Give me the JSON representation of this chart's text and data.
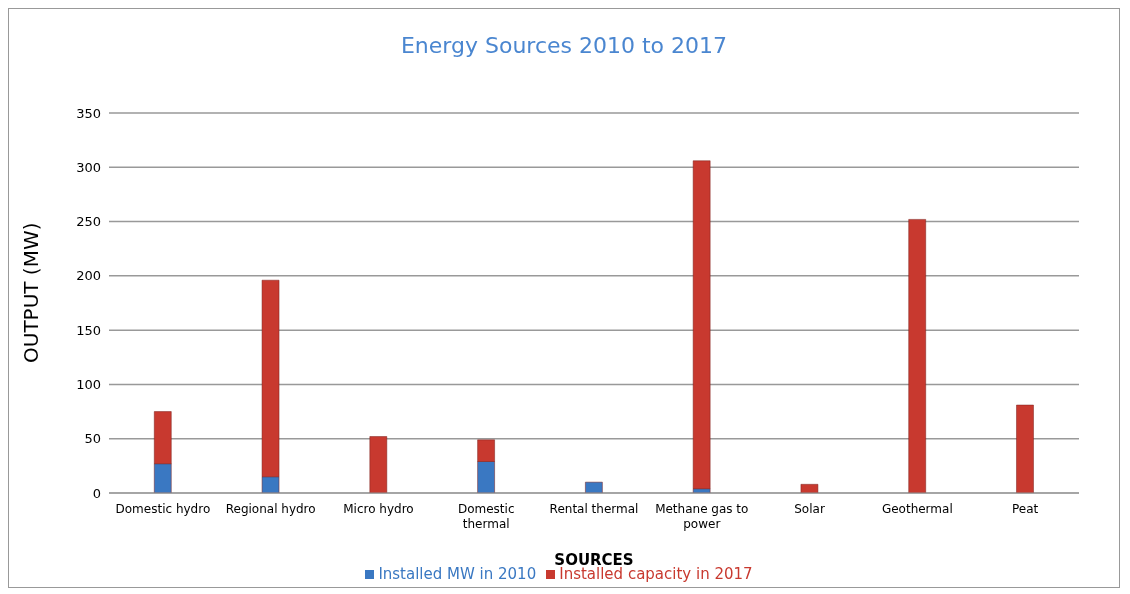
{
  "chart_data": {
    "type": "bar",
    "title": "Energy Sources 2010 to 2017",
    "xlabel": "SOURCES",
    "ylabel": "OUTPUT (MW)",
    "categories": [
      "Domestic hydro",
      "Regional  hydro",
      "Micro hydro",
      "Domestic thermal",
      "Rental  thermal",
      "Methane  gas to power",
      "Solar",
      "Geothermal",
      "Peat"
    ],
    "series": [
      {
        "name": "Installed MW in 2010",
        "color": "#3a78c2",
        "values": [
          27,
          15,
          0,
          29,
          10,
          4,
          0,
          0,
          0
        ]
      },
      {
        "name": "Installed capacity in 2017",
        "color": "#c8392f",
        "values": [
          48,
          181,
          52,
          20,
          0,
          302,
          8,
          252,
          81
        ]
      }
    ],
    "stacked": true,
    "ylim": [
      0,
      350
    ],
    "yticks": [
      0,
      50,
      100,
      150,
      200,
      250,
      300,
      350
    ],
    "grid": "y",
    "legend": "bottom"
  }
}
